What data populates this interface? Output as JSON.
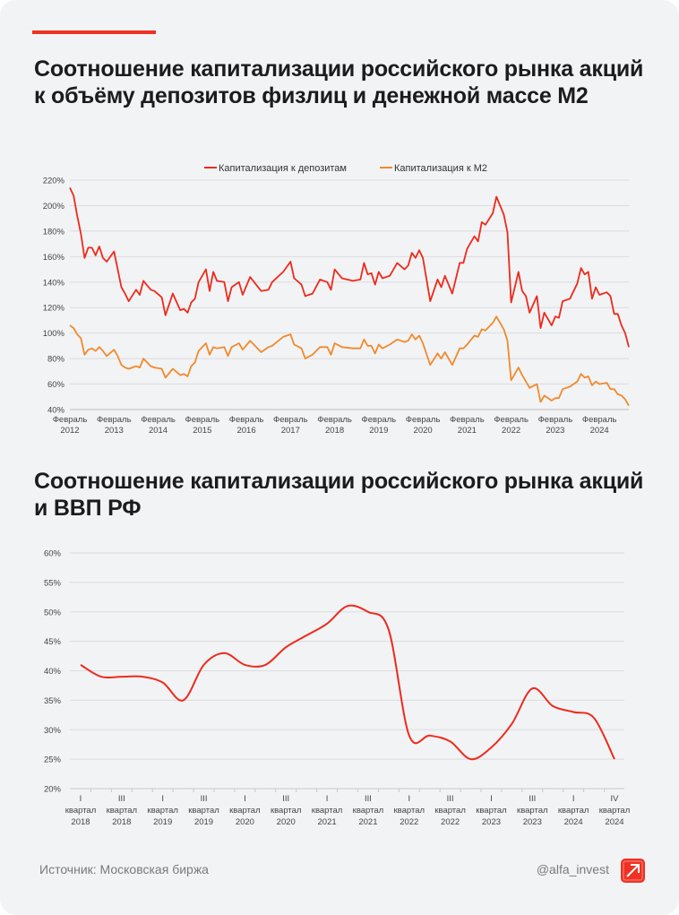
{
  "titles": {
    "chart1": "Соотношение капитализации российского  рынка акций к объёму депозитов физлиц и денежной массе М2",
    "chart2": "Соотношение капитализации российского  рынка акций и ВВП РФ"
  },
  "colors": {
    "accent": "#ef3124",
    "deposits": "#ee2a1b",
    "m2": "#f08a2c",
    "background": "#f2f3f5"
  },
  "footer": {
    "source": "Источник: Московская биржа",
    "handle": "@alfa_invest",
    "logo_icon": "arrow-up-right-icon"
  },
  "chart_data": [
    {
      "type": "line",
      "title": "",
      "ylim": [
        40,
        220
      ],
      "yticks": [
        "220%",
        "200%",
        "180%",
        "160%",
        "140%",
        "120%",
        "100%",
        "80%",
        "60%",
        "40%"
      ],
      "xticks": [
        [
          "Февраль",
          "2012"
        ],
        [
          "Февраль",
          "2013"
        ],
        [
          "Февраль",
          "2014"
        ],
        [
          "Февраль",
          "2015"
        ],
        [
          "Февраль",
          "2016"
        ],
        [
          "Февраль",
          "2017"
        ],
        [
          "Февраль",
          "2018"
        ],
        [
          "Февраль",
          "2019"
        ],
        [
          "Февраль",
          "2020"
        ],
        [
          "Февраль",
          "2021"
        ],
        [
          "Февраль",
          "2022"
        ],
        [
          "Февраль",
          "2023"
        ],
        [
          "Февраль",
          "2024"
        ]
      ],
      "grid": true,
      "legend_position": "top",
      "x": [
        "2012-02",
        "2012-03",
        "2012-04",
        "2012-05",
        "2012-06",
        "2012-07",
        "2012-08",
        "2012-09",
        "2012-10",
        "2012-11",
        "2012-12",
        "2013-02",
        "2013-03",
        "2013-04",
        "2013-05",
        "2013-06",
        "2013-08",
        "2013-09",
        "2013-10",
        "2013-12",
        "2014-01",
        "2014-03",
        "2014-04",
        "2014-06",
        "2014-08",
        "2014-09",
        "2014-10",
        "2014-11",
        "2014-12",
        "2015-01",
        "2015-03",
        "2015-04",
        "2015-05",
        "2015-06",
        "2015-08",
        "2015-09",
        "2015-10",
        "2015-12",
        "2016-01",
        "2016-03",
        "2016-06",
        "2016-08",
        "2016-09",
        "2016-12",
        "2017-02",
        "2017-03",
        "2017-05",
        "2017-06",
        "2017-08",
        "2017-10",
        "2017-12",
        "2018-01",
        "2018-02",
        "2018-04",
        "2018-07",
        "2018-09",
        "2018-10",
        "2018-11",
        "2018-12",
        "2019-01",
        "2019-02",
        "2019-03",
        "2019-05",
        "2019-07",
        "2019-09",
        "2019-10",
        "2019-11",
        "2019-12",
        "2020-01",
        "2020-02",
        "2020-04",
        "2020-06",
        "2020-07",
        "2020-08",
        "2020-10",
        "2020-12",
        "2021-01",
        "2021-02",
        "2021-04",
        "2021-05",
        "2021-06",
        "2021-07",
        "2021-09",
        "2021-10",
        "2021-12",
        "2022-01",
        "2022-02",
        "2022-04",
        "2022-05",
        "2022-06",
        "2022-07",
        "2022-09",
        "2022-10",
        "2022-11",
        "2023-01",
        "2023-02",
        "2023-03",
        "2023-04",
        "2023-06",
        "2023-08",
        "2023-09",
        "2023-10",
        "2023-11",
        "2023-12",
        "2024-01",
        "2024-02",
        "2024-04",
        "2024-05",
        "2024-06",
        "2024-07",
        "2024-08",
        "2024-09",
        "2024-10"
      ],
      "series": [
        {
          "name": "Капитализация к депозитам",
          "color": "#ee2a1b",
          "values": [
            214,
            208,
            192,
            178,
            159,
            167,
            167,
            161,
            168,
            159,
            156,
            164,
            150,
            136,
            131,
            125,
            134,
            130,
            141,
            134,
            133,
            128,
            114,
            131,
            118,
            119,
            116,
            124,
            127,
            140,
            150,
            133,
            148,
            141,
            140,
            125,
            136,
            140,
            130,
            144,
            133,
            134,
            140,
            148,
            156,
            143,
            138,
            129,
            131,
            142,
            140,
            134,
            150,
            143,
            141,
            142,
            155,
            146,
            147,
            138,
            148,
            143,
            145,
            155,
            150,
            153,
            163,
            159,
            165,
            159,
            125,
            142,
            136,
            145,
            131,
            155,
            155,
            166,
            176,
            172,
            187,
            185,
            194,
            207,
            193,
            179,
            124,
            148,
            133,
            129,
            116,
            129,
            104,
            116,
            106,
            113,
            112,
            125,
            127,
            139,
            151,
            146,
            148,
            127,
            136,
            130,
            132,
            129,
            115,
            115,
            106,
            100,
            89
          ]
        },
        {
          "name": "Капитализация к М2",
          "color": "#f08a2c",
          "values": [
            106,
            104,
            99,
            96,
            83,
            87,
            88,
            86,
            89,
            86,
            82,
            87,
            82,
            75,
            73,
            72,
            74,
            73,
            80,
            74,
            73,
            72,
            65,
            72,
            67,
            68,
            66,
            74,
            77,
            86,
            92,
            83,
            89,
            88,
            89,
            82,
            89,
            92,
            87,
            94,
            85,
            89,
            90,
            97,
            99,
            91,
            88,
            80,
            83,
            89,
            89,
            83,
            92,
            89,
            88,
            88,
            95,
            90,
            90,
            84,
            91,
            88,
            91,
            95,
            93,
            94,
            99,
            95,
            98,
            92,
            75,
            84,
            80,
            85,
            75,
            88,
            88,
            91,
            98,
            97,
            103,
            102,
            108,
            113,
            103,
            94,
            63,
            73,
            67,
            62,
            57,
            60,
            46,
            51,
            47,
            49,
            49,
            56,
            58,
            62,
            68,
            65,
            66,
            59,
            62,
            60,
            61,
            56,
            56,
            52,
            51,
            48,
            43
          ]
        }
      ]
    },
    {
      "type": "line",
      "title": "",
      "ylim": [
        20,
        60
      ],
      "yticks": [
        "60%",
        "55%",
        "50%",
        "45%",
        "40%",
        "35%",
        "30%",
        "25%",
        "20%"
      ],
      "grid": true,
      "xticks": [
        [
          "I",
          "квартал",
          "2018"
        ],
        [
          "III",
          "квартал",
          "2018"
        ],
        [
          "I",
          "квартал",
          "2019"
        ],
        [
          "III",
          "квартал",
          "2019"
        ],
        [
          "I",
          "квартал",
          "2020"
        ],
        [
          "III",
          "квартал",
          "2020"
        ],
        [
          "I",
          "квартал",
          "2021"
        ],
        [
          "III",
          "квартал",
          "2021"
        ],
        [
          "I",
          "квартал",
          "2022"
        ],
        [
          "III",
          "квартал",
          "2022"
        ],
        [
          "I",
          "квартал",
          "2023"
        ],
        [
          "III",
          "квартал",
          "2023"
        ],
        [
          "I",
          "квартал",
          "2024"
        ],
        [
          "IV",
          "квартал",
          "2024"
        ]
      ],
      "series": [
        {
          "color": "#ee2a1b",
          "values": [
            41,
            39,
            39,
            39,
            38,
            35,
            41,
            43,
            41,
            41,
            44,
            46,
            48,
            51,
            50,
            47,
            29,
            29,
            28,
            25,
            27,
            31,
            37,
            34,
            33,
            32,
            25
          ]
        }
      ]
    }
  ]
}
